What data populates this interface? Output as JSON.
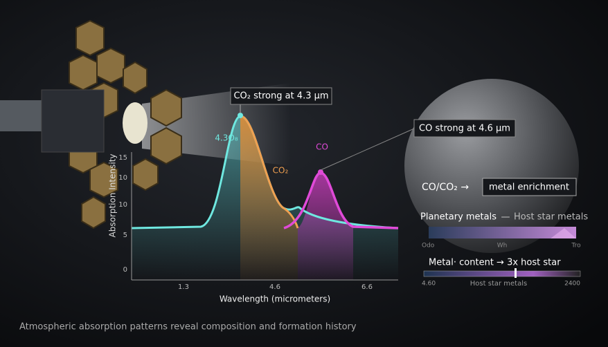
{
  "plot": {
    "y_axis_label": "Absorption Intensity",
    "x_axis_label": "Wavelength (micrometers)",
    "y_tick_labels": [
      "15",
      "10",
      "10",
      "5",
      "0"
    ],
    "x_tick_labels": [
      "1.3",
      "4.6",
      "6.6"
    ],
    "peak_labels": {
      "left": "4.3O₈",
      "co2": "CO₂",
      "co": "CO"
    }
  },
  "callouts": {
    "co2": "CO₂ strong at 4.3 μm",
    "co": "CO strong at 4.6 μm"
  },
  "ratio": {
    "text": "CO/CO₂ →",
    "box": "metal enrichment"
  },
  "metals_scale": {
    "title": "Planetary metals",
    "dash": "—",
    "subtitle": "Host star metals",
    "labels": [
      "Odo",
      "Wh",
      "Tro"
    ]
  },
  "content_scale": {
    "title": "Metal· content → 3x host star",
    "labels": [
      "4.60",
      "Host star metals",
      "2400"
    ]
  },
  "footer": "Atmospheric absorption patterns reveal composition and formation history"
}
